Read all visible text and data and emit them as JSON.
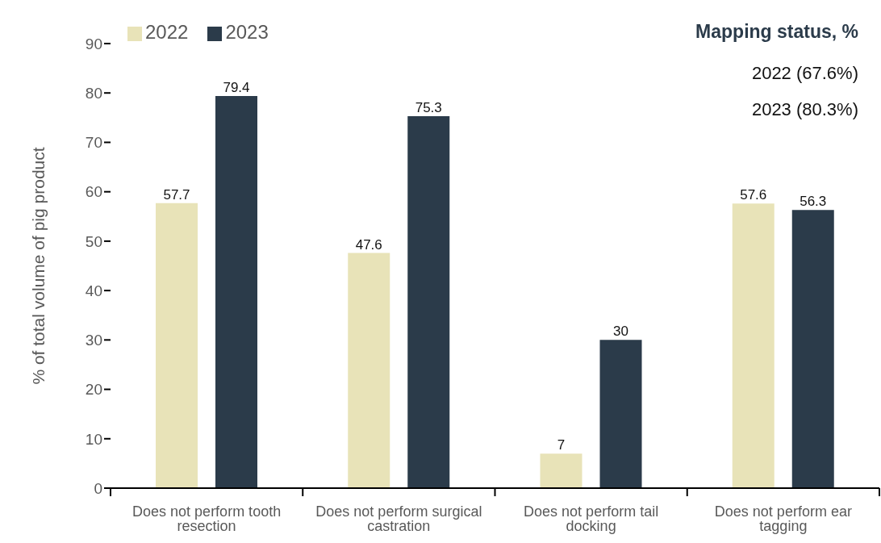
{
  "chart_data": {
    "type": "bar",
    "ylabel": "% of total volume of pig product",
    "categories": [
      "Does not perform tooth resection",
      "Does not perform surgical castration",
      "Does not perform tail docking",
      "Does not perform ear tagging"
    ],
    "series": [
      {
        "name": "2022",
        "color": "#e8e3b8",
        "values": [
          57.7,
          47.6,
          7,
          57.6
        ]
      },
      {
        "name": "2023",
        "color": "#2b3b4a",
        "values": [
          79.4,
          75.3,
          30,
          56.3
        ]
      }
    ],
    "ylim": [
      0,
      90
    ],
    "yticks": [
      0,
      10,
      20,
      30,
      40,
      50,
      60,
      70,
      80,
      90
    ],
    "grid": false,
    "legend": "top left",
    "data_labels": true,
    "annotations": [
      "Mapping status, %",
      "2022 (67.6%)",
      "2023 (80.3%)"
    ]
  }
}
